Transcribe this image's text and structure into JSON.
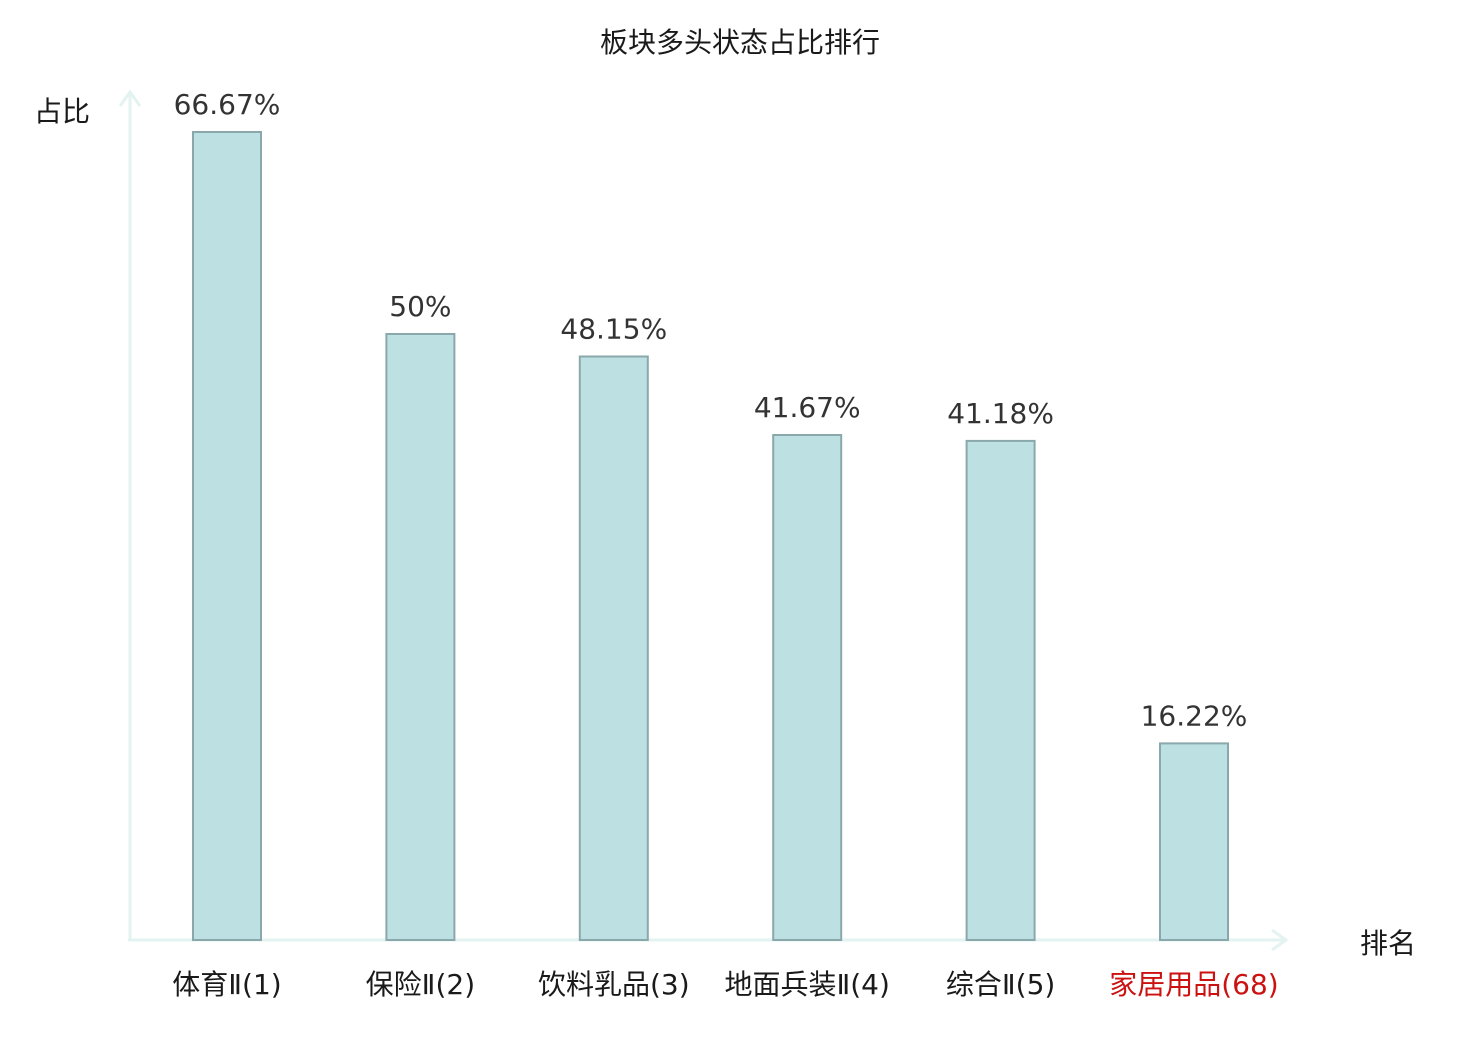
{
  "colors": {
    "bar_fill": "#bde0e3",
    "bar_stroke": "#8aa8ab",
    "axis": "#e3f3f1",
    "text": "#1a1a1a",
    "value_text": "#333333",
    "highlight": "#cc1111"
  },
  "chart_data": {
    "type": "bar",
    "title": "板块多头状态占比排行",
    "xlabel": "排名",
    "ylabel": "占比",
    "grid": false,
    "ylim": [
      0,
      70
    ],
    "categories": [
      {
        "name": "体育Ⅱ",
        "rank": "(1)",
        "value": 66.67,
        "label": "66.67%",
        "highlight": false
      },
      {
        "name": "保险Ⅱ",
        "rank": "(2)",
        "value": 50,
        "label": "50%",
        "highlight": false
      },
      {
        "name": "饮料乳品",
        "rank": "(3)",
        "value": 48.15,
        "label": "48.15%",
        "highlight": false
      },
      {
        "name": "地面兵装Ⅱ",
        "rank": "(4)",
        "value": 41.67,
        "label": "41.67%",
        "highlight": false
      },
      {
        "name": "综合Ⅱ",
        "rank": "(5)",
        "value": 41.18,
        "label": "41.18%",
        "highlight": false
      },
      {
        "name": "家居用品",
        "rank": "(68)",
        "value": 16.22,
        "label": "16.22%",
        "highlight": true
      }
    ]
  }
}
